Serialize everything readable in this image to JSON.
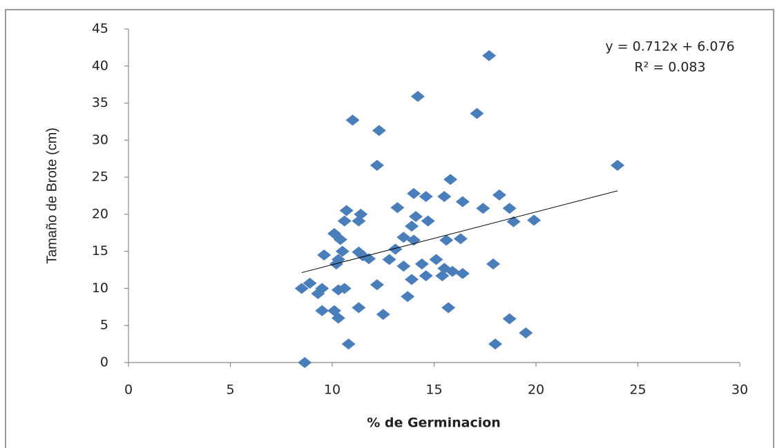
{
  "chart_data": {
    "type": "scatter",
    "x_label": "% de Germinacion",
    "y_label": "Tamaño de Brote (cm)",
    "color": "#4a7ebb",
    "x": [
      8.65,
      10.8,
      18.0,
      19.5,
      18.7,
      10.3,
      12.5,
      9.5,
      10.1,
      11.3,
      15.7,
      13.7,
      9.3,
      8.5,
      8.9,
      9.5,
      10.3,
      10.6,
      12.2,
      13.9,
      14.6,
      15.4,
      16.4,
      15.9,
      15.5,
      17.9,
      13.5,
      14.4,
      12.8,
      15.1,
      11.8,
      10.2,
      10.3,
      9.6,
      10.5,
      11.3,
      11.5,
      13.1,
      13.5,
      14.0,
      15.6,
      16.3,
      10.1,
      10.4,
      13.9,
      10.6,
      11.3,
      14.7,
      18.9,
      19.9,
      14.1,
      11.4,
      10.7,
      13.2,
      17.4,
      18.7,
      16.4,
      15.5,
      14.6,
      14.0,
      18.2,
      15.8,
      12.2,
      24.0,
      12.3,
      11.0,
      17.1,
      14.2,
      17.7
    ],
    "values": [
      0,
      2.5,
      2.5,
      4.0,
      5.9,
      6.0,
      6.5,
      7.0,
      7.0,
      7.4,
      7.4,
      8.9,
      9.3,
      10.0,
      10.7,
      10.0,
      9.8,
      10.0,
      10.5,
      11.2,
      11.7,
      11.7,
      12.0,
      12.3,
      12.7,
      13.3,
      13.0,
      13.3,
      13.9,
      13.9,
      14.0,
      13.3,
      13.9,
      14.5,
      15.0,
      14.9,
      14.4,
      15.3,
      16.9,
      16.5,
      16.5,
      16.7,
      17.4,
      16.6,
      18.4,
      19.1,
      19.1,
      19.1,
      19.0,
      19.2,
      19.7,
      20.0,
      20.5,
      20.9,
      20.8,
      20.8,
      21.7,
      22.4,
      22.4,
      22.8,
      22.6,
      24.7,
      26.6,
      26.6,
      31.3,
      32.7,
      33.6,
      35.9,
      41.4
    ],
    "xlim": [
      0,
      30
    ],
    "xticks": [
      0,
      5,
      10,
      15,
      20,
      25,
      30
    ],
    "ylim": [
      0,
      45
    ],
    "yticks": [
      0,
      5,
      10,
      15,
      20,
      25,
      30,
      35,
      40,
      45
    ],
    "grid": false,
    "trendline": {
      "slope": 0.712,
      "intercept": 6.076,
      "equation": "y = 0.712x + 6.076",
      "r2": "R² = 0.083"
    }
  }
}
